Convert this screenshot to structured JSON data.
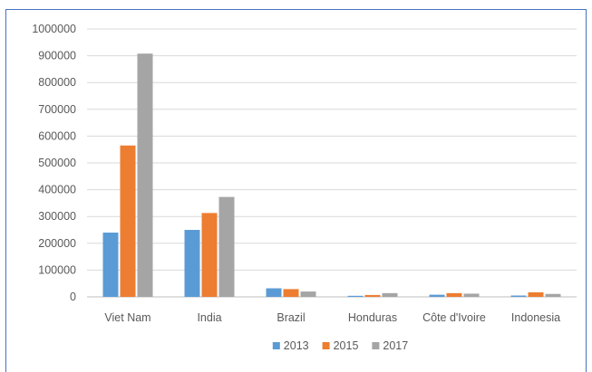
{
  "chart_data": {
    "type": "bar",
    "categories": [
      "Viet Nam",
      "India",
      "Brazil",
      "Honduras",
      "Côte d'Ivoire",
      "Indonesia"
    ],
    "series": [
      {
        "name": "2013",
        "color": "#5b9bd5",
        "values": [
          240000,
          250000,
          32000,
          4000,
          8000,
          5000
        ]
      },
      {
        "name": "2015",
        "color": "#ed7d31",
        "values": [
          565000,
          313000,
          29000,
          7000,
          14000,
          17000
        ]
      },
      {
        "name": "2017",
        "color": "#a5a5a5",
        "values": [
          908000,
          373000,
          20000,
          14000,
          12000,
          11000
        ]
      }
    ],
    "yticks": [
      "0",
      "100000",
      "200000",
      "300000",
      "400000",
      "500000",
      "600000",
      "700000",
      "800000",
      "900000",
      "1000000"
    ],
    "ylim": [
      0,
      1000000
    ],
    "grid": true,
    "legend_position": "bottom",
    "gridline_color": "#d9d9d9",
    "axis_color": "#bfbfbf",
    "frame_color": "#4472c4"
  }
}
